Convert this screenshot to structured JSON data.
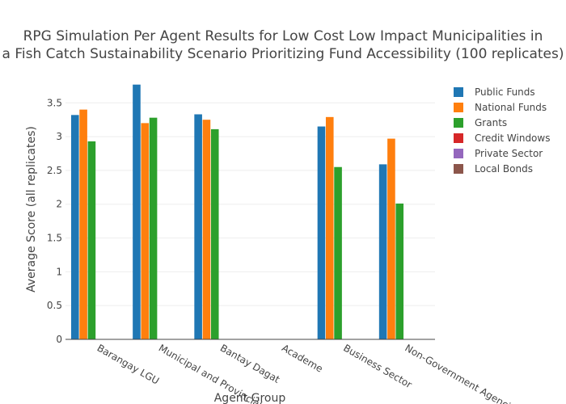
{
  "chart_data": {
    "type": "bar",
    "title_lines": [
      "RPG Simulation Per Agent Results for Low Cost Low Impact Municipalities in",
      "a Fish Catch Sustainability Scenario Prioritizing Fund Accessibility (100 replicates)"
    ],
    "xlabel": "Agent Group",
    "ylabel": "Average Score (all replicates)",
    "ylim": [
      0,
      3.85
    ],
    "yticks": [
      "0",
      "0.5",
      "1",
      "1.5",
      "2",
      "2.5",
      "3",
      "3.5"
    ],
    "ytick_values": [
      0,
      0.5,
      1,
      1.5,
      2,
      2.5,
      3,
      3.5
    ],
    "grid": true,
    "legend_position": "top-right",
    "categories": [
      "Barangay LGU",
      "Municipal and Provincial LGU",
      "Bantay Dagat",
      "Academe",
      "Business Sector",
      "Non-Government Agencies"
    ],
    "series": [
      {
        "name": "Public Funds",
        "color": "#1f77b4",
        "values": [
          3.32,
          3.77,
          3.33,
          null,
          3.15,
          2.59
        ]
      },
      {
        "name": "National Funds",
        "color": "#ff7f0e",
        "values": [
          3.4,
          3.2,
          3.25,
          null,
          3.29,
          2.97
        ]
      },
      {
        "name": "Grants",
        "color": "#2ca02c",
        "values": [
          2.93,
          3.28,
          3.11,
          null,
          2.55,
          2.01
        ]
      },
      {
        "name": "Credit Windows",
        "color": "#d62728",
        "values": [
          null,
          null,
          null,
          null,
          null,
          null
        ]
      },
      {
        "name": "Private Sector",
        "color": "#9467bd",
        "values": [
          null,
          null,
          null,
          null,
          null,
          null
        ]
      },
      {
        "name": "Local Bonds",
        "color": "#8c564b",
        "values": [
          null,
          null,
          null,
          null,
          null,
          null
        ]
      }
    ]
  }
}
